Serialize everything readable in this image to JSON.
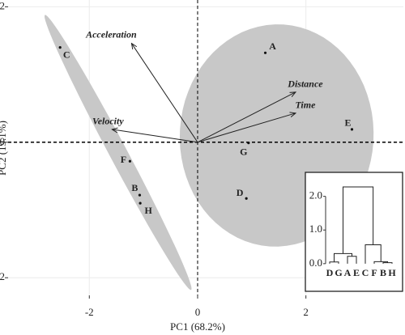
{
  "chart_data": {
    "type": "biplot",
    "xlabel": "PC1 (68.2%)",
    "ylabel": "PC2 (19.1%)",
    "xlim": [
      -3.5,
      3.8
    ],
    "ylim": [
      -2.26,
      2.1
    ],
    "xticks": [
      -2,
      0,
      2
    ],
    "yticks": [
      -2,
      0,
      2
    ],
    "grid": true,
    "points": {
      "labels": [
        "A",
        "B",
        "C",
        "D",
        "E",
        "F",
        "G",
        "H"
      ],
      "x": [
        1.25,
        -1.07,
        -2.54,
        0.9,
        2.85,
        -1.25,
        0.94,
        -1.06
      ],
      "y": [
        1.32,
        -0.78,
        1.4,
        -0.83,
        0.19,
        -0.28,
        -0.01,
        -0.9
      ],
      "color": "#111111"
    },
    "loadings": {
      "labels": [
        "Acceleration",
        "Distance",
        "Time",
        "Velocity"
      ],
      "x": [
        -1.22,
        1.81,
        1.81,
        -1.58
      ],
      "y": [
        1.46,
        0.74,
        0.43,
        0.19
      ],
      "color": "#222222"
    },
    "ellipses": [
      {
        "center": [
          -1.47,
          -0.15
        ],
        "axis1": [
          1.35,
          -2.03
        ],
        "axis2": [
          0.145,
          0.061
        ],
        "color": "#c8c8c8"
      },
      {
        "center": [
          1.46,
          0.1
        ],
        "axis1": [
          1.79,
          0.05
        ],
        "axis2": [
          -0.03,
          1.64
        ],
        "color": "#c8c8c8"
      }
    ],
    "dendrogram": {
      "leaves": [
        "D",
        "G",
        "A",
        "E",
        "C",
        "F",
        "B",
        "H"
      ],
      "merges": [
        {
          "left": 0,
          "right": 1,
          "height": 0.05
        },
        {
          "left": 2,
          "right": 3,
          "height": 0.22
        },
        {
          "left": 8,
          "right": 9,
          "height": 0.3
        },
        {
          "left": 6,
          "right": 7,
          "height": 0.03
        },
        {
          "left": 5,
          "right": 11,
          "height": 0.06
        },
        {
          "left": 4,
          "right": 12,
          "height": 0.56
        },
        {
          "left": 10,
          "right": 13,
          "height": 2.28
        }
      ],
      "ylim": [
        -0.1,
        2.4
      ],
      "yticks": [
        {
          "value": 0,
          "label": "0.0"
        },
        {
          "value": 1,
          "label": "1.0"
        },
        {
          "value": 2,
          "label": "2.0"
        }
      ]
    }
  }
}
